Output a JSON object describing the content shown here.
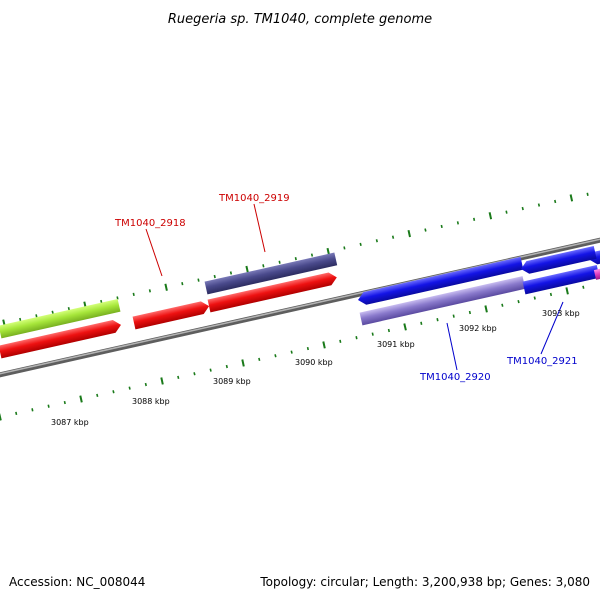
{
  "title": "Ruegeria sp. TM1040, complete genome",
  "footer": {
    "accession": "Accession: NC_008044",
    "summary": "Topology: circular; Length: 3,200,938 bp; Genes: 3,080"
  },
  "colors": {
    "backbone": "#8a8a8a",
    "tick": "#1a7a1a",
    "gene_red": "#ee1111",
    "gene_navy": "#4a4a8c",
    "gene_green": "#a6e63a",
    "gene_blue": "#1414e6",
    "gene_lavender": "#8a7acc",
    "gene_magenta": "#e040c0",
    "label_red": "#cc0000",
    "label_blue": "#0000cc"
  },
  "kbp_labels": [
    "3087 kbp",
    "3088 kbp",
    "3089 kbp",
    "3090 kbp",
    "3091 kbp",
    "3092 kbp",
    "3093 kbp"
  ],
  "gene_labels": [
    "TM1040_2918",
    "TM1040_2919",
    "TM1040_2920",
    "TM1040_2921"
  ]
}
